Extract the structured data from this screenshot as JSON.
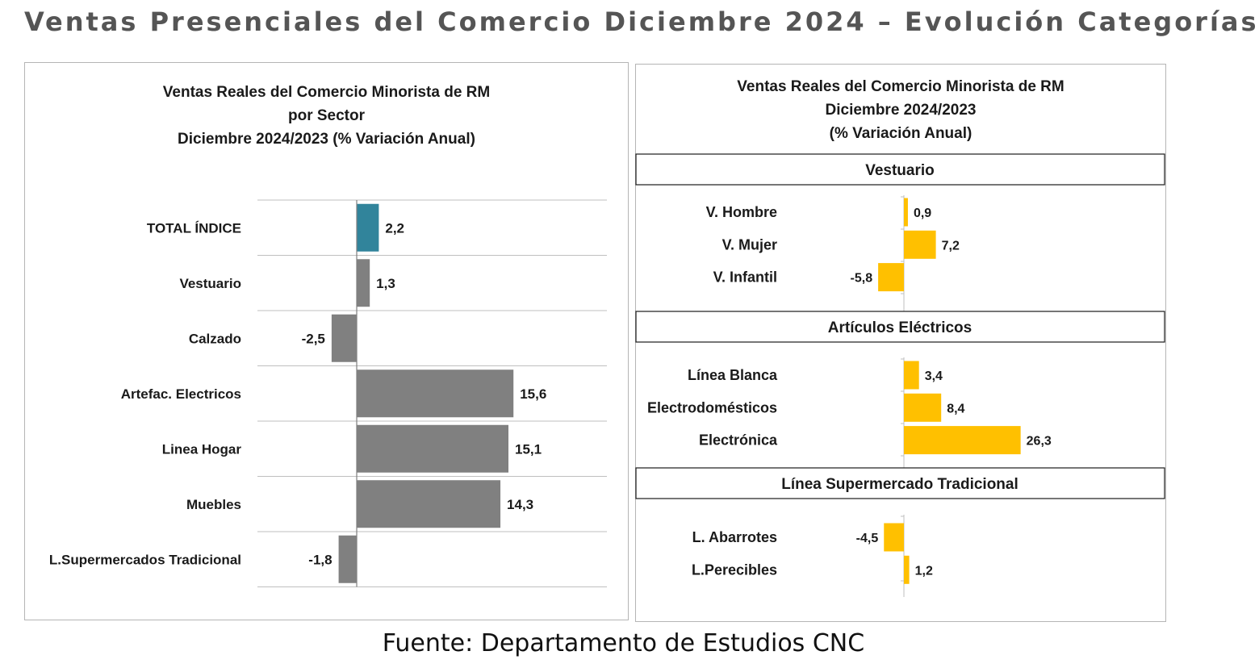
{
  "page_title": "Ventas Presenciales del Comercio Diciembre 2024 – Evolución Categorías",
  "source": "Fuente: Departamento de Estudios CNC",
  "colors": {
    "highlight": "#31849b",
    "bars_left": "#808080",
    "bars_right": "#ffc000",
    "grid": "#bfbfbf"
  },
  "left_chart": {
    "title_lines": [
      "Ventas Reales del Comercio Minorista de RM",
      "por Sector",
      "Diciembre 2024/2023 (% Variación Anual)"
    ]
  },
  "right_chart": {
    "title_lines": [
      "Ventas Reales del Comercio Minorista de RM",
      "Diciembre 2024/2023",
      "(% Variación Anual)"
    ]
  },
  "chart_data": [
    {
      "type": "bar",
      "orientation": "horizontal",
      "title": "Ventas Reales del Comercio Minorista de RM por Sector Diciembre 2024/2023 (% Variación Anual)",
      "categories": [
        "TOTAL ÍNDICE",
        "Vestuario",
        "Calzado",
        "Artefac. Electricos",
        "Linea Hogar",
        "Muebles",
        "L.Supermercados Tradicional"
      ],
      "values": [
        2.2,
        1.3,
        -2.5,
        15.6,
        15.1,
        14.3,
        -1.8
      ],
      "labels": [
        "2,2",
        "1,3",
        "-2,5",
        "15,6",
        "15,1",
        "14,3",
        "-1,8"
      ],
      "highlight_index": 0,
      "xlim": [
        -10,
        25
      ],
      "grid": true
    },
    {
      "type": "bar",
      "orientation": "horizontal",
      "title": "Ventas Reales del Comercio Minorista de RM Diciembre 2024/2023 (% Variación Anual)",
      "xlim": [
        -12,
        32
      ],
      "groups": [
        {
          "name": "Vestuario",
          "categories": [
            "V. Hombre",
            "V. Mujer",
            "V. Infantil"
          ],
          "values": [
            0.9,
            7.2,
            -5.8
          ],
          "labels": [
            "0,9",
            "7,2",
            "-5,8"
          ]
        },
        {
          "name": "Artículos Eléctricos",
          "categories": [
            "Línea Blanca",
            "Electrodomésticos",
            "Electrónica"
          ],
          "values": [
            3.4,
            8.4,
            26.3
          ],
          "labels": [
            "3,4",
            "8,4",
            "26,3"
          ]
        },
        {
          "name": "Línea Supermercado Tradicional",
          "categories": [
            "L. Abarrotes",
            "L.Perecibles"
          ],
          "values": [
            -4.5,
            1.2
          ],
          "labels": [
            "-4,5",
            "1,2"
          ]
        }
      ]
    }
  ]
}
